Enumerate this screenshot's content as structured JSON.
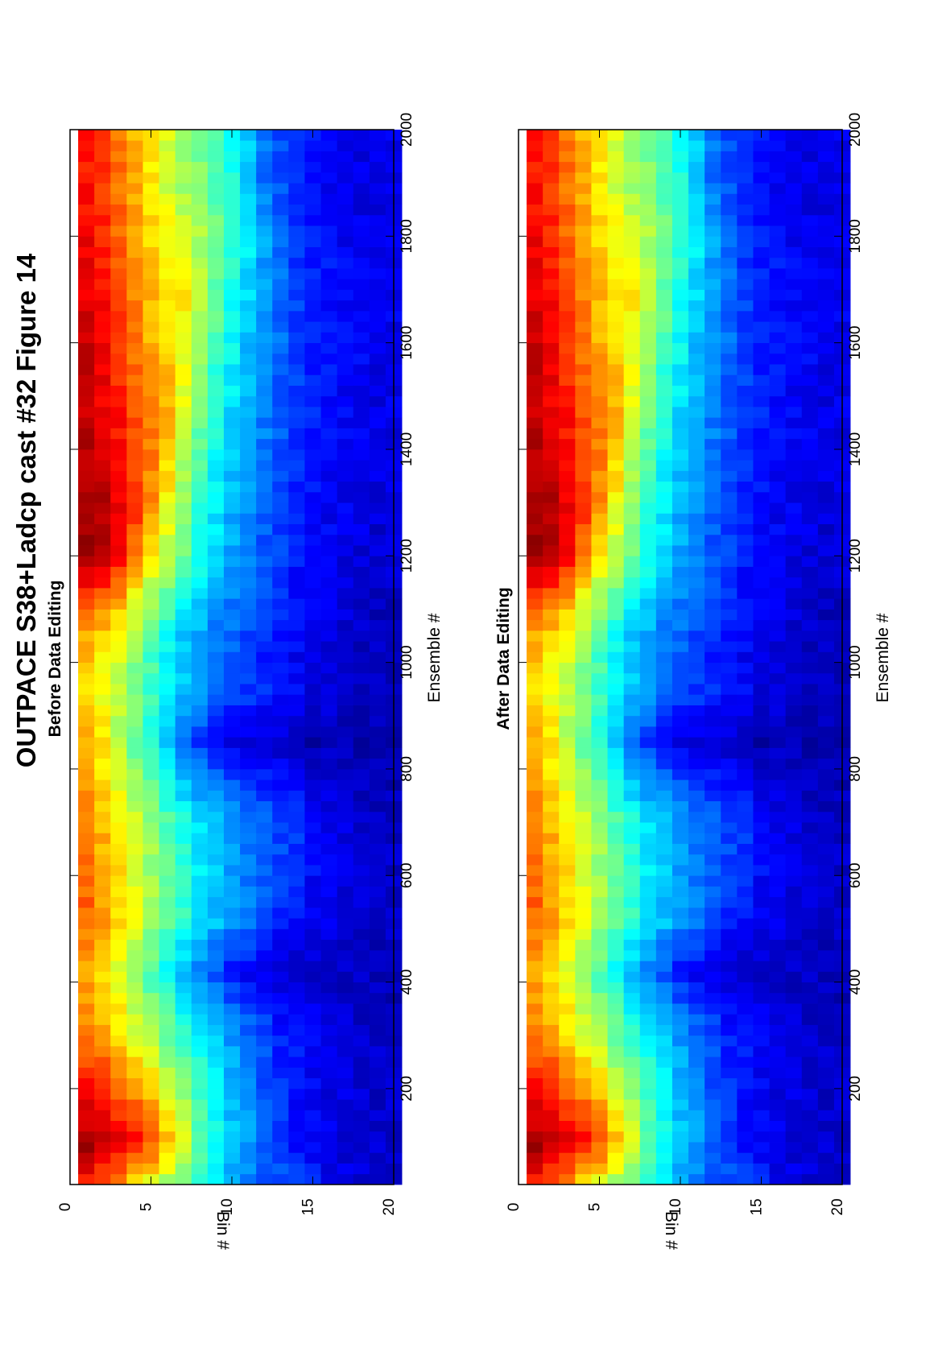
{
  "figure": {
    "title": "OUTPACE S38+Ladcp cast #32  Figure 14",
    "orientation": "rotated -90 degrees (landscape figure on portrait page)"
  },
  "chart_data": [
    {
      "type": "heatmap",
      "title": "Before Data Editing",
      "xlabel": "Ensemble #",
      "ylabel": "Bin #",
      "xlim": [
        20,
        2000
      ],
      "ylim": [
        0,
        20
      ],
      "y_reversed": true,
      "xticks": [
        200,
        400,
        600,
        800,
        1000,
        1200,
        1400,
        1600,
        1800,
        2000
      ],
      "yticks": [
        0,
        5,
        10,
        15,
        20
      ],
      "colormap": "jet",
      "bins": [
        1,
        2,
        3,
        4,
        5,
        6,
        7,
        8,
        9,
        10,
        11,
        12,
        13,
        14,
        15,
        16,
        17,
        18,
        19,
        20
      ],
      "profile_ensembles": [
        20,
        100,
        300,
        420,
        520,
        700,
        850,
        950,
        1050,
        1200,
        1300,
        1450,
        1600,
        1700,
        1800,
        1900,
        2000
      ],
      "cell_levels": [
        [
          0.85,
          0.78,
          0.72,
          0.66,
          0.6,
          0.53,
          0.47,
          0.4,
          0.34,
          0.28,
          0.24,
          0.21,
          0.2,
          0.18,
          0.15,
          0.12,
          0.1,
          0.09,
          0.08,
          0.08
        ],
        [
          0.97,
          0.94,
          0.9,
          0.86,
          0.8,
          0.7,
          0.6,
          0.48,
          0.4,
          0.33,
          0.28,
          0.22,
          0.18,
          0.14,
          0.12,
          0.1,
          0.09,
          0.08,
          0.08,
          0.08
        ],
        [
          0.76,
          0.72,
          0.66,
          0.6,
          0.54,
          0.48,
          0.44,
          0.38,
          0.33,
          0.28,
          0.24,
          0.2,
          0.16,
          0.14,
          0.12,
          0.1,
          0.09,
          0.08,
          0.07,
          0.07
        ],
        [
          0.7,
          0.66,
          0.6,
          0.52,
          0.45,
          0.38,
          0.3,
          0.25,
          0.2,
          0.15,
          0.12,
          0.1,
          0.09,
          0.08,
          0.07,
          0.06,
          0.06,
          0.06,
          0.05,
          0.05
        ],
        [
          0.78,
          0.72,
          0.66,
          0.6,
          0.54,
          0.48,
          0.42,
          0.36,
          0.32,
          0.28,
          0.24,
          0.2,
          0.16,
          0.14,
          0.12,
          0.1,
          0.09,
          0.08,
          0.07,
          0.07
        ],
        [
          0.76,
          0.7,
          0.64,
          0.58,
          0.52,
          0.46,
          0.4,
          0.35,
          0.32,
          0.29,
          0.26,
          0.23,
          0.2,
          0.18,
          0.14,
          0.11,
          0.09,
          0.08,
          0.07,
          0.07
        ],
        [
          0.7,
          0.64,
          0.56,
          0.48,
          0.4,
          0.32,
          0.24,
          0.18,
          0.14,
          0.11,
          0.09,
          0.08,
          0.07,
          0.06,
          0.05,
          0.05,
          0.05,
          0.05,
          0.05,
          0.05
        ],
        [
          0.66,
          0.62,
          0.56,
          0.5,
          0.44,
          0.38,
          0.32,
          0.27,
          0.23,
          0.2,
          0.18,
          0.16,
          0.14,
          0.12,
          0.1,
          0.09,
          0.08,
          0.07,
          0.06,
          0.06
        ],
        [
          0.7,
          0.66,
          0.6,
          0.52,
          0.44,
          0.38,
          0.33,
          0.29,
          0.25,
          0.22,
          0.19,
          0.16,
          0.14,
          0.12,
          0.1,
          0.09,
          0.08,
          0.07,
          0.06,
          0.06
        ],
        [
          0.96,
          0.94,
          0.88,
          0.74,
          0.64,
          0.56,
          0.48,
          0.4,
          0.34,
          0.29,
          0.25,
          0.21,
          0.18,
          0.15,
          0.13,
          0.11,
          0.1,
          0.09,
          0.08,
          0.08
        ],
        [
          0.97,
          0.95,
          0.9,
          0.84,
          0.74,
          0.62,
          0.52,
          0.42,
          0.36,
          0.3,
          0.26,
          0.22,
          0.19,
          0.16,
          0.14,
          0.12,
          0.11,
          0.1,
          0.09,
          0.09
        ],
        [
          0.94,
          0.9,
          0.86,
          0.8,
          0.76,
          0.72,
          0.58,
          0.48,
          0.4,
          0.34,
          0.29,
          0.25,
          0.21,
          0.18,
          0.15,
          0.13,
          0.12,
          0.11,
          0.1,
          0.1
        ],
        [
          0.92,
          0.88,
          0.82,
          0.76,
          0.7,
          0.66,
          0.62,
          0.52,
          0.44,
          0.38,
          0.32,
          0.27,
          0.23,
          0.19,
          0.16,
          0.14,
          0.13,
          0.12,
          0.11,
          0.11
        ],
        [
          0.9,
          0.86,
          0.8,
          0.74,
          0.7,
          0.66,
          0.64,
          0.56,
          0.48,
          0.4,
          0.34,
          0.28,
          0.23,
          0.19,
          0.16,
          0.14,
          0.13,
          0.12,
          0.11,
          0.11
        ],
        [
          0.88,
          0.84,
          0.78,
          0.72,
          0.66,
          0.62,
          0.58,
          0.54,
          0.48,
          0.42,
          0.36,
          0.28,
          0.22,
          0.18,
          0.15,
          0.13,
          0.12,
          0.11,
          0.1,
          0.1
        ],
        [
          0.86,
          0.82,
          0.76,
          0.7,
          0.64,
          0.58,
          0.54,
          0.5,
          0.46,
          0.4,
          0.32,
          0.24,
          0.2,
          0.16,
          0.14,
          0.12,
          0.11,
          0.1,
          0.1,
          0.1
        ],
        [
          0.86,
          0.82,
          0.76,
          0.7,
          0.64,
          0.58,
          0.54,
          0.5,
          0.46,
          0.4,
          0.32,
          0.24,
          0.2,
          0.16,
          0.14,
          0.12,
          0.11,
          0.1,
          0.1,
          0.1
        ]
      ]
    },
    {
      "type": "heatmap",
      "title": "After Data Editing",
      "xlabel": "Ensemble #",
      "ylabel": "Bin #",
      "xlim": [
        20,
        2000
      ],
      "ylim": [
        0,
        20
      ],
      "y_reversed": true,
      "xticks": [
        200,
        400,
        600,
        800,
        1000,
        1200,
        1400,
        1600,
        1800,
        2000
      ],
      "yticks": [
        0,
        5,
        10,
        15,
        20
      ],
      "colormap": "jet",
      "bins": [
        1,
        2,
        3,
        4,
        5,
        6,
        7,
        8,
        9,
        10,
        11,
        12,
        13,
        14,
        15,
        16,
        17,
        18,
        19,
        20
      ],
      "profile_ensembles": [
        20,
        100,
        300,
        420,
        520,
        700,
        850,
        950,
        1050,
        1200,
        1300,
        1450,
        1600,
        1700,
        1800,
        1900,
        2000
      ],
      "cell_levels": [
        [
          0.85,
          0.78,
          0.72,
          0.66,
          0.6,
          0.53,
          0.47,
          0.4,
          0.34,
          0.28,
          0.24,
          0.21,
          0.2,
          0.18,
          0.15,
          0.12,
          0.1,
          0.09,
          0.08,
          0.08
        ],
        [
          0.97,
          0.94,
          0.9,
          0.86,
          0.8,
          0.7,
          0.6,
          0.48,
          0.4,
          0.33,
          0.28,
          0.22,
          0.18,
          0.14,
          0.12,
          0.1,
          0.09,
          0.08,
          0.08,
          0.08
        ],
        [
          0.76,
          0.72,
          0.66,
          0.6,
          0.54,
          0.48,
          0.44,
          0.38,
          0.33,
          0.28,
          0.24,
          0.2,
          0.16,
          0.14,
          0.12,
          0.1,
          0.09,
          0.08,
          0.07,
          0.07
        ],
        [
          0.7,
          0.66,
          0.6,
          0.52,
          0.45,
          0.38,
          0.3,
          0.25,
          0.2,
          0.15,
          0.12,
          0.1,
          0.09,
          0.08,
          0.07,
          0.06,
          0.06,
          0.06,
          0.05,
          0.05
        ],
        [
          0.78,
          0.72,
          0.66,
          0.6,
          0.54,
          0.48,
          0.42,
          0.36,
          0.32,
          0.28,
          0.24,
          0.2,
          0.16,
          0.14,
          0.12,
          0.1,
          0.09,
          0.08,
          0.07,
          0.07
        ],
        [
          0.76,
          0.7,
          0.64,
          0.58,
          0.52,
          0.46,
          0.4,
          0.35,
          0.32,
          0.29,
          0.26,
          0.23,
          0.2,
          0.18,
          0.14,
          0.11,
          0.09,
          0.08,
          0.07,
          0.07
        ],
        [
          0.7,
          0.64,
          0.56,
          0.48,
          0.4,
          0.32,
          0.24,
          0.18,
          0.14,
          0.11,
          0.09,
          0.08,
          0.07,
          0.06,
          0.05,
          0.05,
          0.05,
          0.05,
          0.05,
          0.05
        ],
        [
          0.66,
          0.62,
          0.56,
          0.5,
          0.44,
          0.38,
          0.32,
          0.27,
          0.23,
          0.2,
          0.18,
          0.16,
          0.14,
          0.12,
          0.1,
          0.09,
          0.08,
          0.07,
          0.06,
          0.06
        ],
        [
          0.7,
          0.66,
          0.6,
          0.52,
          0.44,
          0.38,
          0.33,
          0.29,
          0.25,
          0.22,
          0.19,
          0.16,
          0.14,
          0.12,
          0.1,
          0.09,
          0.08,
          0.07,
          0.06,
          0.06
        ],
        [
          0.96,
          0.94,
          0.88,
          0.74,
          0.64,
          0.56,
          0.48,
          0.4,
          0.34,
          0.29,
          0.25,
          0.21,
          0.18,
          0.15,
          0.13,
          0.11,
          0.1,
          0.09,
          0.08,
          0.08
        ],
        [
          0.97,
          0.95,
          0.9,
          0.84,
          0.74,
          0.62,
          0.52,
          0.42,
          0.36,
          0.3,
          0.26,
          0.22,
          0.19,
          0.16,
          0.14,
          0.12,
          0.11,
          0.1,
          0.09,
          0.09
        ],
        [
          0.94,
          0.9,
          0.86,
          0.8,
          0.76,
          0.72,
          0.58,
          0.48,
          0.4,
          0.34,
          0.29,
          0.25,
          0.21,
          0.18,
          0.15,
          0.13,
          0.12,
          0.11,
          0.1,
          0.1
        ],
        [
          0.92,
          0.88,
          0.82,
          0.76,
          0.7,
          0.66,
          0.62,
          0.52,
          0.44,
          0.38,
          0.32,
          0.27,
          0.23,
          0.19,
          0.16,
          0.14,
          0.13,
          0.12,
          0.11,
          0.11
        ],
        [
          0.9,
          0.86,
          0.8,
          0.74,
          0.7,
          0.66,
          0.64,
          0.56,
          0.48,
          0.4,
          0.34,
          0.28,
          0.23,
          0.19,
          0.16,
          0.14,
          0.13,
          0.12,
          0.11,
          0.11
        ],
        [
          0.88,
          0.84,
          0.78,
          0.72,
          0.66,
          0.62,
          0.58,
          0.54,
          0.48,
          0.42,
          0.36,
          0.28,
          0.22,
          0.18,
          0.15,
          0.13,
          0.12,
          0.11,
          0.1,
          0.1
        ],
        [
          0.86,
          0.82,
          0.76,
          0.7,
          0.64,
          0.58,
          0.54,
          0.5,
          0.46,
          0.4,
          0.32,
          0.24,
          0.2,
          0.16,
          0.14,
          0.12,
          0.11,
          0.1,
          0.1,
          0.1
        ],
        [
          0.86,
          0.82,
          0.76,
          0.7,
          0.64,
          0.58,
          0.54,
          0.5,
          0.46,
          0.4,
          0.32,
          0.24,
          0.2,
          0.16,
          0.14,
          0.12,
          0.11,
          0.1,
          0.1,
          0.1
        ]
      ]
    }
  ]
}
